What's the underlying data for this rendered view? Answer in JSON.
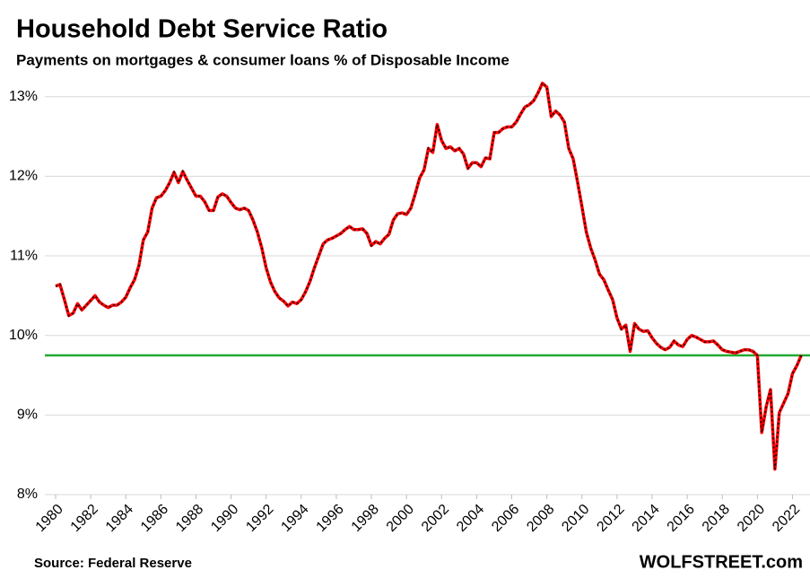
{
  "chart_data": {
    "type": "line",
    "title": "Household Debt Service Ratio",
    "subtitle": "Payments on mortgages & consumer loans % of Disposable Income",
    "source": "Source: Federal Reserve",
    "brand": "WOLFSTREET.com",
    "x": [
      1980,
      1980.25,
      1980.5,
      1980.75,
      1981,
      1981.25,
      1981.5,
      1981.75,
      1982,
      1982.25,
      1982.5,
      1982.75,
      1983,
      1983.25,
      1983.5,
      1983.75,
      1984,
      1984.25,
      1984.5,
      1984.75,
      1985,
      1985.25,
      1985.5,
      1985.75,
      1986,
      1986.25,
      1986.5,
      1986.75,
      1987,
      1987.25,
      1987.5,
      1987.75,
      1988,
      1988.25,
      1988.5,
      1988.75,
      1989,
      1989.25,
      1989.5,
      1989.75,
      1990,
      1990.25,
      1990.5,
      1990.75,
      1991,
      1991.25,
      1991.5,
      1991.75,
      1992,
      1992.25,
      1992.5,
      1992.75,
      1993,
      1993.25,
      1993.5,
      1993.75,
      1994,
      1994.25,
      1994.5,
      1994.75,
      1995,
      1995.25,
      1995.5,
      1995.75,
      1996,
      1996.25,
      1996.5,
      1996.75,
      1997,
      1997.25,
      1997.5,
      1997.75,
      1998,
      1998.25,
      1998.5,
      1998.75,
      1999,
      1999.25,
      1999.5,
      1999.75,
      2000,
      2000.25,
      2000.5,
      2000.75,
      2001,
      2001.25,
      2001.5,
      2001.75,
      2002,
      2002.25,
      2002.5,
      2002.75,
      2003,
      2003.25,
      2003.5,
      2003.75,
      2004,
      2004.25,
      2004.5,
      2004.75,
      2005,
      2005.25,
      2005.5,
      2005.75,
      2006,
      2006.25,
      2006.5,
      2006.75,
      2007,
      2007.25,
      2007.5,
      2007.75,
      2008,
      2008.25,
      2008.5,
      2008.75,
      2009,
      2009.25,
      2009.5,
      2009.75,
      2010,
      2010.25,
      2010.5,
      2010.75,
      2011,
      2011.25,
      2011.5,
      2011.75,
      2012,
      2012.25,
      2012.5,
      2012.75,
      2013,
      2013.25,
      2013.5,
      2013.75,
      2014,
      2014.25,
      2014.5,
      2014.75,
      2015,
      2015.25,
      2015.5,
      2015.75,
      2016,
      2016.25,
      2016.5,
      2016.75,
      2017,
      2017.25,
      2017.5,
      2017.75,
      2018,
      2018.25,
      2018.5,
      2018.75,
      2019,
      2019.25,
      2019.5,
      2019.75,
      2020,
      2020.25,
      2020.5,
      2020.75,
      2021,
      2021.25,
      2021.5,
      2021.75,
      2022,
      2022.25,
      2022.5
    ],
    "series": [
      {
        "color": "#ff0000",
        "values": [
          10.62,
          10.64,
          10.45,
          10.25,
          10.28,
          10.4,
          10.32,
          10.38,
          10.44,
          10.5,
          10.42,
          10.38,
          10.35,
          10.38,
          10.38,
          10.42,
          10.48,
          10.6,
          10.7,
          10.88,
          11.2,
          11.3,
          11.6,
          11.73,
          11.75,
          11.82,
          11.92,
          12.05,
          11.92,
          12.06,
          11.95,
          11.85,
          11.75,
          11.75,
          11.68,
          11.57,
          11.57,
          11.74,
          11.78,
          11.75,
          11.67,
          11.6,
          11.58,
          11.6,
          11.57,
          11.45,
          11.3,
          11.1,
          10.85,
          10.67,
          10.55,
          10.47,
          10.43,
          10.37,
          10.42,
          10.4,
          10.45,
          10.55,
          10.68,
          10.85,
          11.0,
          11.15,
          11.2,
          11.22,
          11.25,
          11.28,
          11.33,
          11.37,
          11.33,
          11.33,
          11.34,
          11.28,
          11.13,
          11.18,
          11.15,
          11.22,
          11.27,
          11.45,
          11.53,
          11.54,
          11.52,
          11.6,
          11.78,
          11.98,
          12.08,
          12.35,
          12.3,
          12.65,
          12.45,
          12.35,
          12.37,
          12.32,
          12.35,
          12.28,
          12.1,
          12.17,
          12.17,
          12.12,
          12.23,
          12.22,
          12.55,
          12.55,
          12.6,
          12.62,
          12.62,
          12.68,
          12.78,
          12.87,
          12.9,
          12.95,
          13.05,
          13.17,
          13.12,
          12.75,
          12.82,
          12.77,
          12.68,
          12.35,
          12.22,
          11.93,
          11.62,
          11.3,
          11.1,
          10.95,
          10.77,
          10.7,
          10.57,
          10.45,
          10.22,
          10.08,
          10.13,
          9.8,
          10.15,
          10.08,
          10.05,
          10.06,
          9.97,
          9.9,
          9.85,
          9.82,
          9.85,
          9.93,
          9.88,
          9.86,
          9.95,
          10.0,
          9.98,
          9.95,
          9.92,
          9.92,
          9.93,
          9.88,
          9.82,
          9.8,
          9.79,
          9.78,
          9.8,
          9.82,
          9.82,
          9.8,
          9.75,
          8.78,
          9.1,
          9.32,
          8.32,
          9.03,
          9.15,
          9.27,
          9.52,
          9.62,
          9.75
        ]
      }
    ],
    "reference_line": {
      "value": 9.75,
      "color": "#22aa33"
    },
    "xlim": [
      1980,
      2023
    ],
    "xticks": [
      1980,
      1982,
      1984,
      1986,
      1988,
      1990,
      1992,
      1994,
      1996,
      1998,
      2000,
      2002,
      2004,
      2006,
      2008,
      2010,
      2012,
      2014,
      2016,
      2018,
      2020,
      2022
    ],
    "ylim": [
      8,
      13.2
    ],
    "yticks": [
      {
        "value": 8,
        "label": "8%"
      },
      {
        "value": 9,
        "label": "9%"
      },
      {
        "value": 10,
        "label": "10%"
      },
      {
        "value": 11,
        "label": "11%"
      },
      {
        "value": 12,
        "label": "12%"
      },
      {
        "value": 13,
        "label": "13%"
      }
    ],
    "grid": true
  }
}
